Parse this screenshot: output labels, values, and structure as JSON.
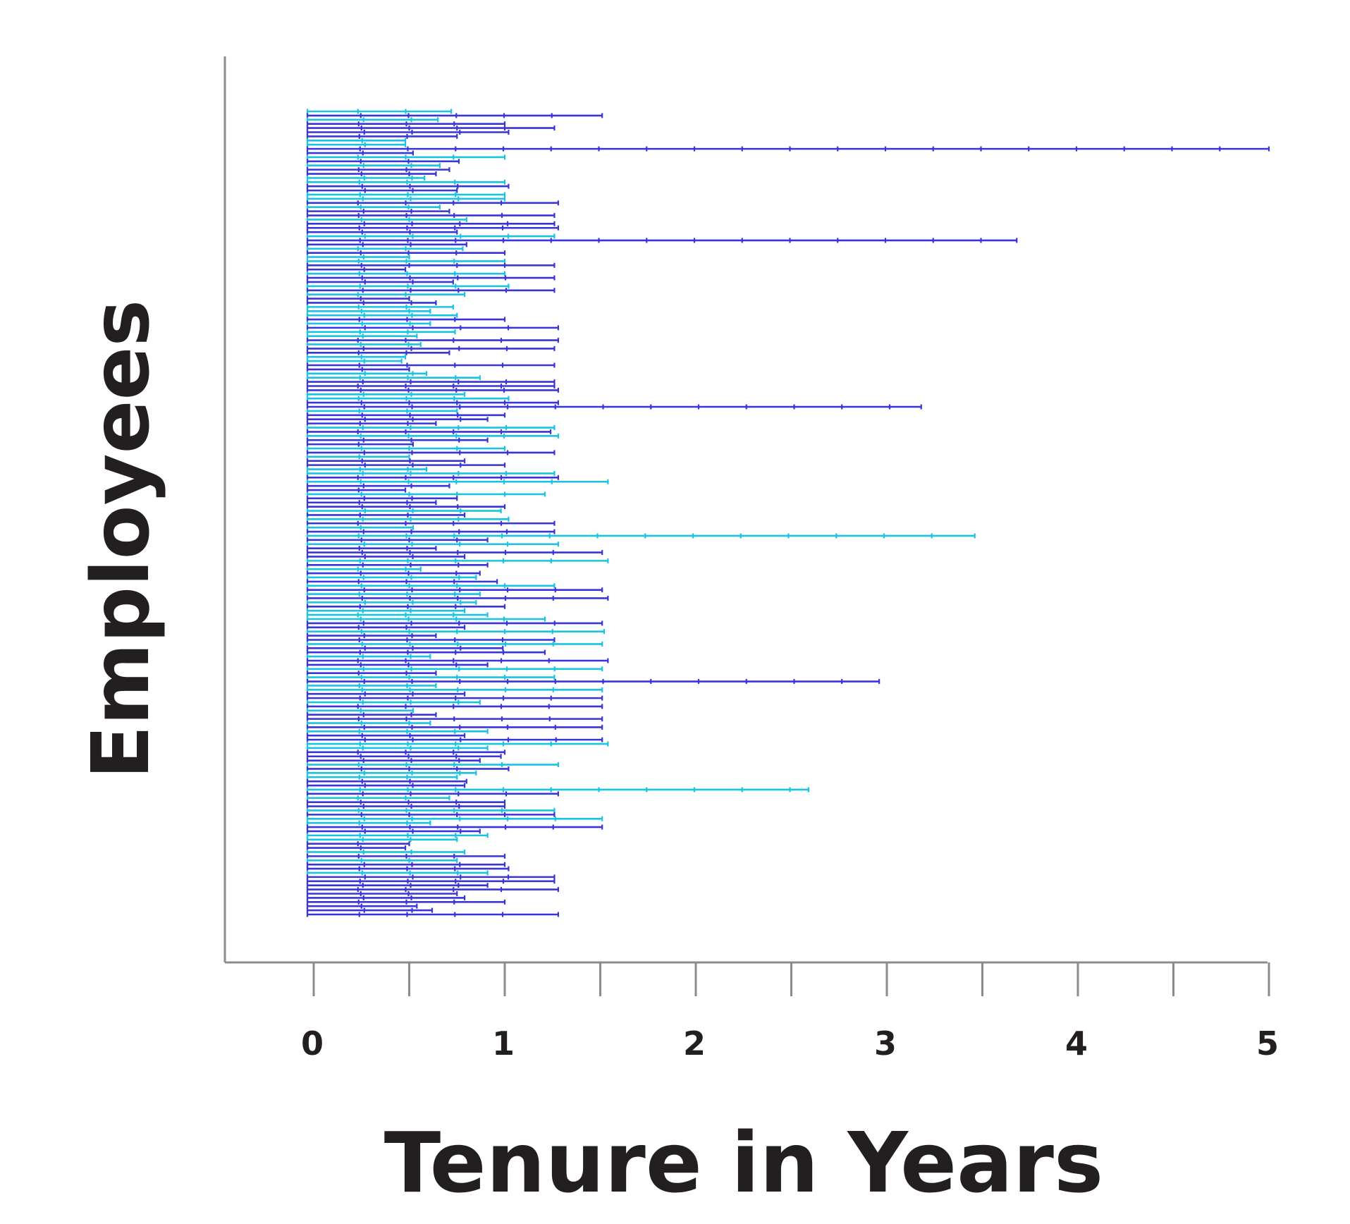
{
  "chart_data": {
    "type": "bar",
    "orientation": "horizontal",
    "xlabel": "Tenure in Years",
    "ylabel": "Employees",
    "xlim": [
      -0.45,
      5
    ],
    "xticks": [
      0,
      0.5,
      1,
      1.5,
      2,
      2.5,
      3,
      3.5,
      4,
      4.5,
      5
    ],
    "xtick_labels": [
      "0",
      "1",
      "2",
      "3",
      "4",
      "5"
    ],
    "xtick_label_values": [
      0,
      1,
      2,
      3,
      4,
      5
    ],
    "grid": false,
    "legend": "none",
    "colors": {
      "blue": "#3a35d9",
      "cyan": "#18c4e0",
      "axis": "#8c8c8c",
      "text": "#231f20"
    },
    "series": [
      {
        "name": "",
        "color_sequence": [
          "cyan",
          "blue",
          "cyan",
          "blue",
          "blue",
          "blue",
          "blue",
          "cyan",
          "cyan",
          "blue",
          "blue",
          "cyan",
          "blue",
          "cyan",
          "blue",
          "blue",
          "cyan",
          "cyan",
          "blue",
          "blue",
          "cyan",
          "cyan",
          "blue",
          "cyan",
          "blue",
          "blue",
          "cyan",
          "blue",
          "blue",
          "blue",
          "cyan",
          "blue",
          "blue",
          "cyan",
          "blue",
          "cyan",
          "cyan",
          "blue",
          "blue",
          "cyan",
          "blue",
          "blue",
          "cyan",
          "blue",
          "cyan",
          "blue",
          "blue",
          "cyan",
          "cyan",
          "cyan",
          "blue",
          "cyan",
          "blue",
          "cyan",
          "cyan",
          "blue",
          "cyan",
          "blue",
          "blue",
          "cyan",
          "cyan",
          "blue",
          "blue",
          "cyan",
          "cyan",
          "blue",
          "blue",
          "blue",
          "cyan",
          "cyan",
          "blue",
          "blue",
          "cyan",
          "blue",
          "blue",
          "blue",
          "cyan",
          "blue",
          "cyan",
          "blue",
          "blue",
          "cyan",
          "blue",
          "cyan",
          "blue",
          "blue",
          "cyan",
          "cyan",
          "blue",
          "cyan",
          "blue",
          "blue",
          "cyan",
          "blue",
          "blue",
          "blue",
          "cyan",
          "blue",
          "cyan",
          "blue",
          "cyan",
          "blue",
          "cyan",
          "blue",
          "cyan",
          "blue",
          "blue",
          "blue",
          "cyan",
          "blue",
          "cyan",
          "blue",
          "cyan",
          "blue",
          "cyan",
          "blue",
          "cyan",
          "blue",
          "cyan",
          "blue",
          "cyan",
          "cyan",
          "cyan",
          "blue",
          "blue",
          "cyan",
          "blue",
          "blue",
          "cyan",
          "blue",
          "blue",
          "cyan",
          "blue",
          "blue",
          "cyan",
          "blue",
          "cyan",
          "blue",
          "cyan",
          "cyan",
          "blue",
          "blue",
          "cyan",
          "blue",
          "cyan",
          "blue",
          "blue",
          "cyan",
          "blue",
          "cyan",
          "blue",
          "blue",
          "cyan",
          "cyan",
          "blue",
          "blue",
          "blue",
          "cyan",
          "blue",
          "cyan",
          "cyan",
          "blue",
          "blue",
          "cyan",
          "blue",
          "cyan",
          "blue",
          "blue",
          "cyan",
          "blue",
          "cyan",
          "cyan",
          "blue",
          "blue",
          "cyan",
          "cyan",
          "blue",
          "blue",
          "cyan",
          "blue",
          "cyan",
          "blue",
          "blue",
          "cyan",
          "blue",
          "blue"
        ],
        "values": [
          0.72,
          1.51,
          0.65,
          1.0,
          1.26,
          1.02,
          0.75,
          0.48,
          0.48,
          5.0,
          0.52,
          1.0,
          0.76,
          0.66,
          0.71,
          0.64,
          0.58,
          1.0,
          1.02,
          0.75,
          1.0,
          1.0,
          1.28,
          0.66,
          0.71,
          1.26,
          0.8,
          1.26,
          1.28,
          0.75,
          1.26,
          3.68,
          0.8,
          0.78,
          1.0,
          0.5,
          1.0,
          1.26,
          0.48,
          1.0,
          1.26,
          0.73,
          1.02,
          1.26,
          0.79,
          0.5,
          0.64,
          0.73,
          0.61,
          0.75,
          1.0,
          0.61,
          1.28,
          0.74,
          0.54,
          1.28,
          0.56,
          1.26,
          0.71,
          0.48,
          0.46,
          1.26,
          0.5,
          0.59,
          0.87,
          1.26,
          1.26,
          1.28,
          0.79,
          1.02,
          1.28,
          3.18,
          0.75,
          1.0,
          0.91,
          0.64,
          1.26,
          1.24,
          1.28,
          0.91,
          0.52,
          1.0,
          1.26,
          0.5,
          0.79,
          1.0,
          0.59,
          1.26,
          1.28,
          1.54,
          0.71,
          0.48,
          1.21,
          0.75,
          0.64,
          1.0,
          0.98,
          0.79,
          1.02,
          1.26,
          0.52,
          1.26,
          3.46,
          0.91,
          1.28,
          0.64,
          1.51,
          0.79,
          1.54,
          0.91,
          0.56,
          0.87,
          0.85,
          0.96,
          1.26,
          1.51,
          0.87,
          1.54,
          0.85,
          1.0,
          0.79,
          0.91,
          1.21,
          1.51,
          0.79,
          1.52,
          0.64,
          1.26,
          1.51,
          0.99,
          1.21,
          0.61,
          1.54,
          0.91,
          1.51,
          0.64,
          1.26,
          2.96,
          0.64,
          1.51,
          0.79,
          1.51,
          0.87,
          1.51,
          0.52,
          0.64,
          1.51,
          0.61,
          1.51,
          0.91,
          0.79,
          1.51,
          1.54,
          0.91,
          1.0,
          0.98,
          0.87,
          1.28,
          1.02,
          0.85,
          0.75,
          0.8,
          0.79,
          2.59,
          1.28,
          0.71,
          1.0,
          1.0,
          1.26,
          1.26,
          1.51,
          0.61,
          1.51,
          0.87,
          0.91,
          0.75,
          0.5,
          0.48,
          0.79,
          1.0,
          0.75,
          1.0,
          1.02,
          0.91,
          1.26,
          1.26,
          0.91,
          1.28,
          0.75,
          0.79,
          1.0,
          0.54,
          0.62,
          1.28
        ]
      }
    ]
  }
}
